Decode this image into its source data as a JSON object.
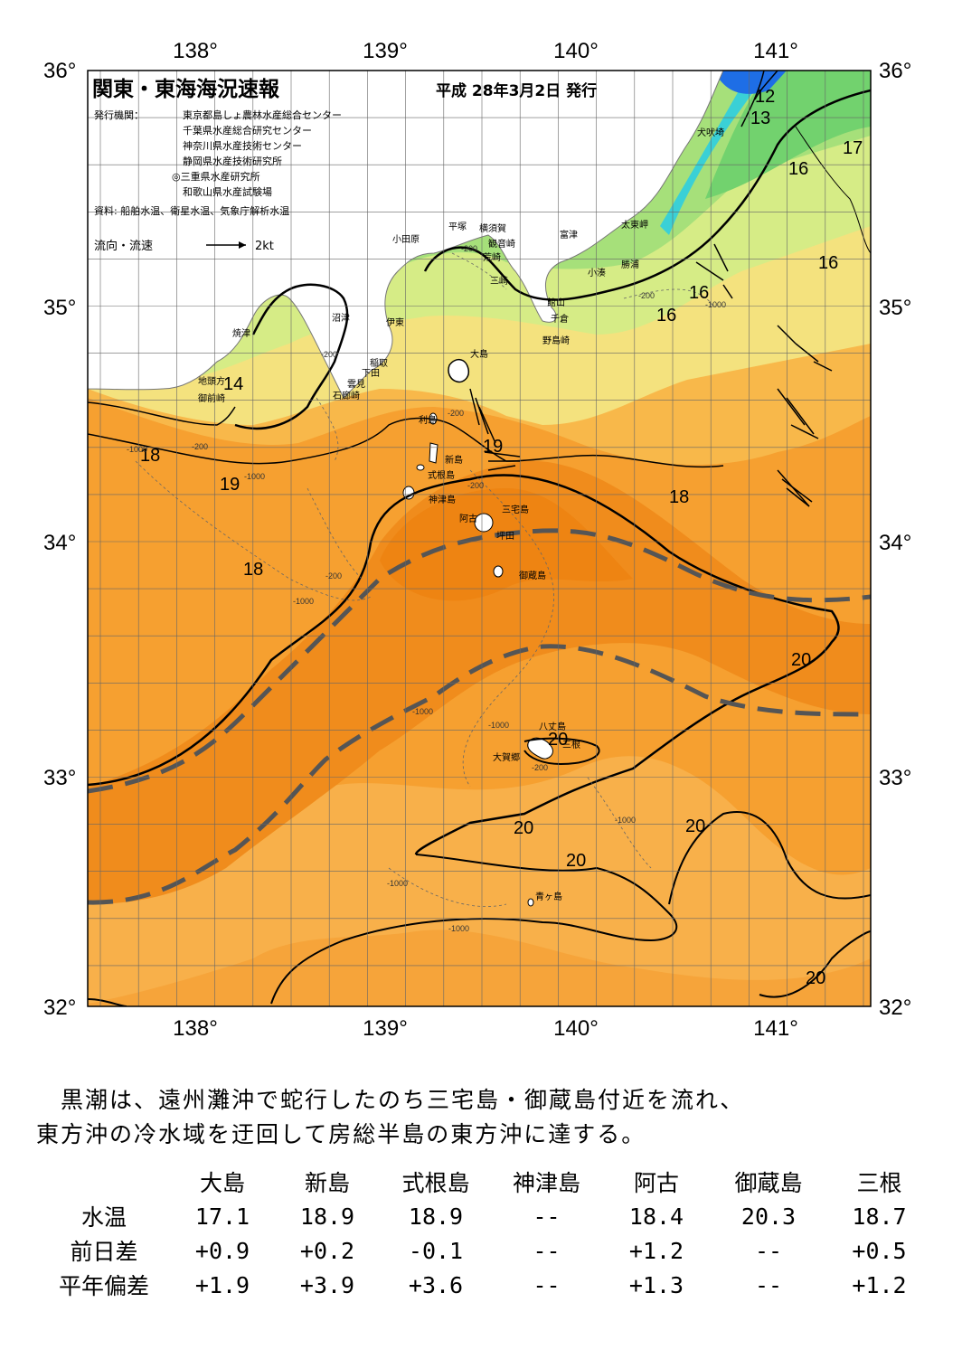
{
  "map": {
    "title": "関東・東海海況速報",
    "issue_date": "平成 28年3月2日 発行",
    "publisher_label": "発行機関：",
    "publishers": [
      "東京都島しょ農林水産総合センター",
      "千葉県水産総合研究センター",
      "神奈川県水産技術センター",
      "静岡県水産技術研究所",
      "◎三重県水産研究所",
      "和歌山県水産試験場"
    ],
    "source": "資料: 船舶水温、衛星水温、気象庁解析水温",
    "legend_label": "流向・流速",
    "legend_scale": "2kt",
    "lon_labels": [
      "138°",
      "139°",
      "140°",
      "141°"
    ],
    "lat_labels": [
      "36°",
      "35°",
      "34°",
      "33°",
      "32°"
    ],
    "places": [
      {
        "name": "大島"
      },
      {
        "name": "利島"
      },
      {
        "name": "新島"
      },
      {
        "name": "式根島"
      },
      {
        "name": "神津島"
      },
      {
        "name": "三宅島"
      },
      {
        "name": "阿古"
      },
      {
        "name": "坪田"
      },
      {
        "name": "御蔵島"
      },
      {
        "name": "八丈島"
      },
      {
        "name": "三根"
      },
      {
        "name": "大賀郷"
      },
      {
        "name": "青ヶ島"
      },
      {
        "name": "小田原"
      },
      {
        "name": "平塚"
      },
      {
        "name": "横須賀"
      },
      {
        "name": "観音崎"
      },
      {
        "name": "富津"
      },
      {
        "name": "荒崎"
      },
      {
        "name": "三崎"
      },
      {
        "name": "館山"
      },
      {
        "name": "千倉"
      },
      {
        "name": "野島崎"
      },
      {
        "name": "小湊"
      },
      {
        "name": "勝浦"
      },
      {
        "name": "太東岬"
      },
      {
        "name": "犬吠埼"
      },
      {
        "name": "沼津"
      },
      {
        "name": "伊東"
      },
      {
        "name": "稲取"
      },
      {
        "name": "下田"
      },
      {
        "name": "雲見"
      },
      {
        "name": "石廊崎"
      },
      {
        "name": "焼津"
      },
      {
        "name": "地頭方"
      },
      {
        "name": "御前崎"
      }
    ],
    "isotherm_labels": [
      "12",
      "13",
      "14",
      "16",
      "16",
      "16",
      "16",
      "17",
      "18",
      "18",
      "18",
      "19",
      "19",
      "20",
      "20",
      "20",
      "20",
      "20",
      "20"
    ],
    "depth_labels": [
      "-200",
      "-200",
      "-200",
      "-200",
      "-200",
      "-200",
      "-200",
      "-200",
      "-1000",
      "-1000",
      "-1000",
      "-1000",
      "-1000",
      "-1000",
      "-1000",
      "-1000",
      "-1000"
    ],
    "colors": {
      "orange_dark": "#f08c1c",
      "orange": "#f6a030",
      "orange_light": "#f8b84a",
      "yellow": "#f4e27e",
      "yellowgreen": "#d6ec86",
      "green": "#a6e07a",
      "green2": "#72d26e",
      "cyan": "#3ad0d6",
      "blue": "#1e6ee6",
      "land": "#ffffff"
    }
  },
  "summary": {
    "line1": "　黒潮は、遠州灘沖で蛇行したのち三宅島・御蔵島付近を流れ、",
    "line2": "東方沖の冷水域を迂回して房総半島の東方沖に達する。"
  },
  "table": {
    "headers": [
      "大島",
      "新島",
      "式根島",
      "神津島",
      "阿古",
      "御蔵島",
      "三根"
    ],
    "rows": [
      {
        "label": "水温",
        "values": [
          "17.1",
          "18.9",
          "18.9",
          "--",
          "18.4",
          "20.3",
          "18.7"
        ]
      },
      {
        "label": "前日差",
        "values": [
          "+0.9",
          "+0.2",
          "-0.1",
          "--",
          "+1.2",
          "--",
          "+0.5"
        ]
      },
      {
        "label": "平年偏差",
        "values": [
          "+1.9",
          "+3.9",
          "+3.6",
          "--",
          "+1.3",
          "--",
          "+1.2"
        ]
      }
    ]
  }
}
